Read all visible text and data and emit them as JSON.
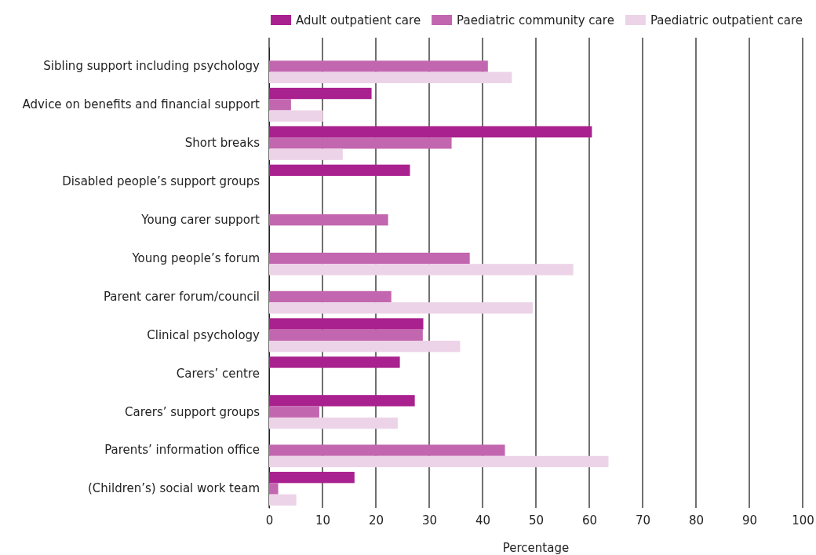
{
  "chart_data": {
    "type": "bar",
    "orientation": "horizontal",
    "xlabel": "Percentage",
    "categories": [
      "Sibling support including psychology",
      "Advice on benefits and financial support",
      "Short breaks",
      "Disabled people’s support groups",
      "Young carer support",
      "Young people’s forum",
      "Parent carer forum/council",
      "Clinical psychology",
      "Carers’ centre",
      "Carers’ support groups",
      "Parents’ information office",
      "(Children’s) social work team"
    ],
    "series": [
      {
        "name": "Adult outpatient care",
        "color": "#a9218e",
        "values": [
          null,
          19.2,
          60.5,
          26.4,
          null,
          null,
          null,
          28.9,
          24.5,
          27.3,
          null,
          16.0
        ]
      },
      {
        "name": "Paediatric community care",
        "color": "#c366b0",
        "values": [
          41.0,
          4.1,
          34.2,
          null,
          22.3,
          37.6,
          22.9,
          28.8,
          null,
          9.4,
          44.2,
          1.7
        ]
      },
      {
        "name": "Paediatric outpatient care",
        "color": "#edd3e8",
        "values": [
          45.5,
          10.1,
          13.8,
          null,
          null,
          57.0,
          49.4,
          35.8,
          null,
          24.1,
          63.6,
          5.1
        ]
      }
    ],
    "xlim": [
      0,
      100
    ],
    "xticks": [
      0,
      10,
      20,
      30,
      40,
      50,
      60,
      70,
      80,
      90,
      100
    ],
    "grid": "x",
    "legend": "top right"
  }
}
